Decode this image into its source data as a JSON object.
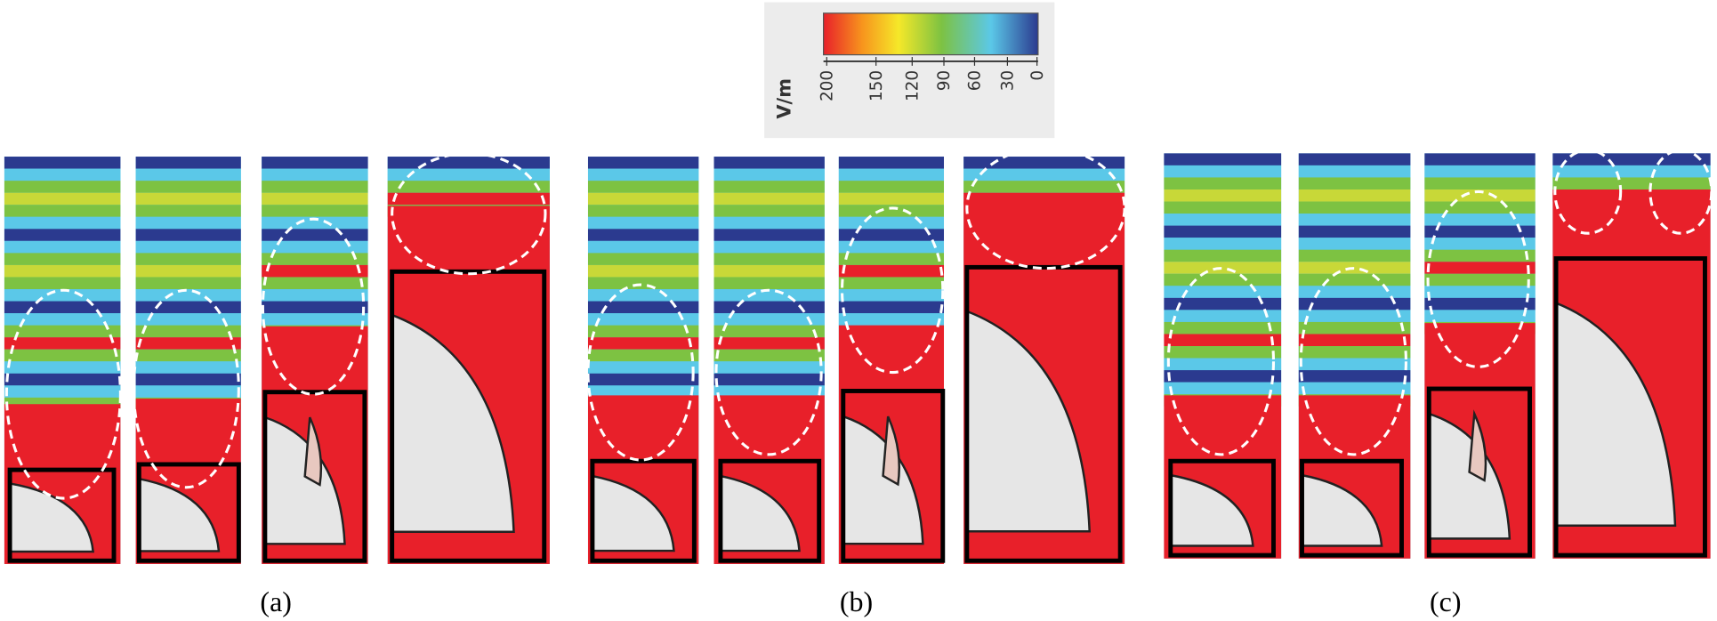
{
  "colorbar": {
    "unit": "V/m",
    "ticks": [
      200,
      150,
      120,
      90,
      60,
      30,
      0
    ]
  },
  "panels": {
    "labels": [
      "(a)",
      "(b)",
      "(c)"
    ]
  }
}
